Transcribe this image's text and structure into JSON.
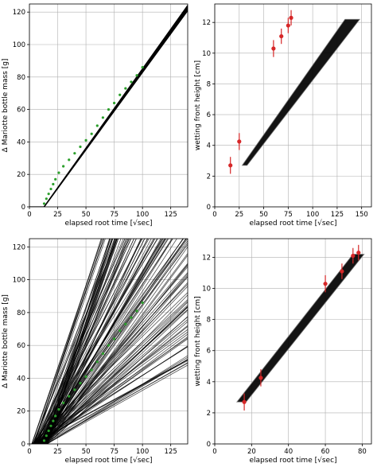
{
  "chart_data": [
    {
      "type": "line",
      "xlabel": "elapsed root time [√sec]",
      "ylabel": "Δ Mariotte bottle mass [g]",
      "xlim": [
        0,
        140
      ],
      "ylim": [
        0,
        125
      ],
      "xticks": [
        "0",
        "25",
        "50",
        "75",
        "100",
        "125"
      ],
      "yticks": [
        "0",
        "20",
        "40",
        "60",
        "80",
        "100",
        "120"
      ],
      "grid": true,
      "model_ensemble": {
        "color": "#000000",
        "x_start": 13,
        "x_end": 140,
        "y_at_end_min": 121,
        "y_at_end_max": 124
      },
      "observations": {
        "color": "#2ca02c",
        "x": [
          13,
          15,
          17,
          19,
          21,
          23,
          26,
          30,
          35,
          40,
          45,
          50,
          55,
          60,
          65,
          70,
          75,
          80,
          85,
          90,
          95,
          100
        ],
        "y": [
          2,
          5,
          8,
          11,
          14,
          17,
          21,
          25,
          29,
          33,
          37,
          41,
          45,
          50,
          55,
          60,
          64,
          69,
          73,
          77,
          81,
          86
        ]
      }
    },
    {
      "type": "scatter",
      "xlabel": "elapsed root time [√sec]",
      "ylabel": "wetting front height [cm]",
      "xlim": [
        0,
        160
      ],
      "ylim": [
        0,
        13.2
      ],
      "xticks": [
        "0",
        "25",
        "50",
        "75",
        "100",
        "125",
        "150"
      ],
      "yticks": [
        "0",
        "2",
        "4",
        "6",
        "8",
        "10",
        "12"
      ],
      "grid": true,
      "model_band": {
        "color": "#000000",
        "start_x": [
          28,
          33
        ],
        "start_y": 2.7,
        "end_x": [
          133,
          148
        ],
        "end_y": 12.2
      },
      "observations": {
        "color": "#d62728",
        "x": [
          16,
          25,
          60,
          68,
          75,
          78
        ],
        "y": [
          2.7,
          4.25,
          10.3,
          11.1,
          11.8,
          12.3
        ],
        "err": [
          0.55,
          0.55,
          0.55,
          0.5,
          0.5,
          0.5
        ]
      }
    },
    {
      "type": "line",
      "xlabel": "elapsed root time [√sec]",
      "ylabel": "Δ Mariotte bottle mass [g]",
      "xlim": [
        0,
        140
      ],
      "ylim": [
        0,
        125
      ],
      "xticks": [
        "0",
        "25",
        "50",
        "75",
        "100",
        "125"
      ],
      "yticks": [
        "0",
        "20",
        "40",
        "60",
        "80",
        "100",
        "120"
      ],
      "grid": true,
      "model_ensemble": {
        "color": "#000000",
        "x_start_range": [
          2,
          16
        ],
        "slope_range": [
          0.37,
          2.2
        ],
        "members": 140
      },
      "observations": {
        "color": "#2ca02c",
        "x": [
          13,
          15,
          17,
          19,
          21,
          23,
          26,
          30,
          35,
          40,
          45,
          50,
          55,
          60,
          65,
          70,
          75,
          80,
          85,
          90,
          95,
          100
        ],
        "y": [
          2,
          5,
          8,
          11,
          14,
          17,
          21,
          25,
          29,
          33,
          37,
          41,
          45,
          50,
          55,
          60,
          64,
          69,
          73,
          77,
          81,
          86
        ]
      }
    },
    {
      "type": "scatter",
      "xlabel": "elapsed root time [√sec]",
      "ylabel": "wetting front height [cm]",
      "xlim": [
        0,
        85
      ],
      "ylim": [
        0,
        13.2
      ],
      "xticks": [
        "0",
        "20",
        "40",
        "60",
        "80"
      ],
      "yticks": [
        "0",
        "2",
        "4",
        "6",
        "8",
        "10",
        "12"
      ],
      "grid": true,
      "model_band": {
        "color": "#000000",
        "start_x": [
          12,
          17
        ],
        "start_y": 2.7,
        "end_x": [
          75,
          81
        ],
        "end_y": 12.2
      },
      "observations": {
        "color": "#d62728",
        "x": [
          16,
          25,
          60,
          69,
          75,
          78
        ],
        "y": [
          2.7,
          4.25,
          10.3,
          11.1,
          12.1,
          12.3
        ],
        "err": [
          0.55,
          0.55,
          0.55,
          0.5,
          0.5,
          0.5
        ]
      }
    }
  ]
}
